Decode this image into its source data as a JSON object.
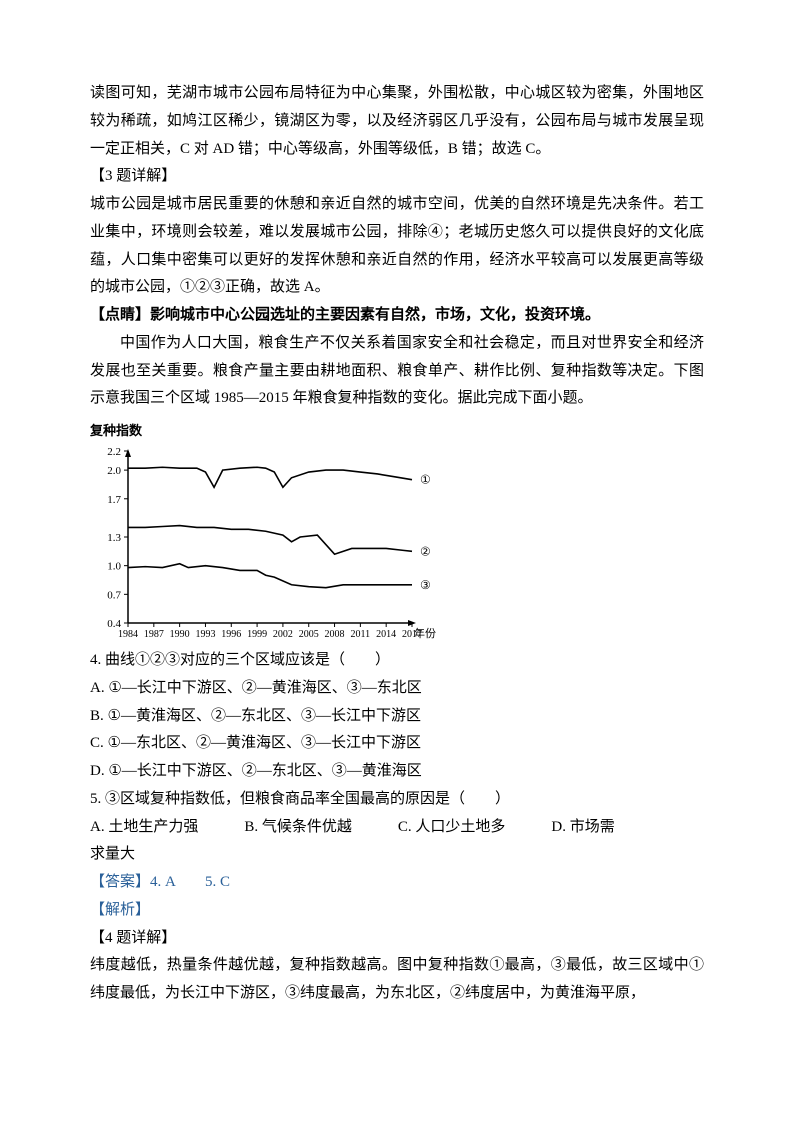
{
  "para1": "读图可知，芜湖市城市公园布局特征为中心集聚，外围松散，中心城区较为密集，外围地区较为稀疏，如鸠江区稀少，镜湖区为零，以及经济弱区几乎没有，公园布局与城市发展呈现一定正相关，C 对 AD 错；中心等级高，外围等级低，B 错；故选 C。",
  "q3_header": "【3 题详解】",
  "para2": "城市公园是城市居民重要的休憩和亲近自然的城市空间，优美的自然环境是先决条件。若工业集中，环境则会较差，难以发展城市公园，排除④；老城历史悠久可以提供良好的文化底蕴，人口集中密集可以更好的发挥休憩和亲近自然的作用，经济水平较高可以发展更高等级的城市公园，①②③正确，故选 A。",
  "dianjing": "【点睛】影响城市中心公园选址的主要因素有自然，市场，文化，投资环境。",
  "context1": "中国作为人口大国，粮食生产不仅关系着国家安全和社会稳定，而且对世界安全和经济发展也至关重要。粮食产量主要由耕地面积、粮食单产、耕作比例、复种指数等决定。下图示意我国三个区域 1985—2015 年粮食复种指数的变化。据此完成下面小题。",
  "chart": {
    "type": "line",
    "ylabel": "复种指数",
    "xlabel_suffix": "年份",
    "ylim": [
      0.4,
      2.2
    ],
    "yticks": [
      0.4,
      0.7,
      1.0,
      1.3,
      1.7,
      2.0,
      2.2
    ],
    "xlim": [
      1984,
      2017
    ],
    "xticks": [
      1984,
      1987,
      1990,
      1993,
      1996,
      1999,
      2002,
      2005,
      2008,
      2011,
      2014,
      2017
    ],
    "line_color": "#000000",
    "axis_color": "#000000",
    "background_color": "#ffffff",
    "series_label_font": 12,
    "axis_font": 11,
    "series": [
      {
        "label": "①",
        "points": [
          [
            1984,
            2.02
          ],
          [
            1986,
            2.02
          ],
          [
            1988,
            2.03
          ],
          [
            1990,
            2.02
          ],
          [
            1992,
            2.02
          ],
          [
            1993,
            1.98
          ],
          [
            1994,
            1.82
          ],
          [
            1995,
            2.0
          ],
          [
            1997,
            2.02
          ],
          [
            1999,
            2.03
          ],
          [
            2000,
            2.02
          ],
          [
            2001,
            1.98
          ],
          [
            2002,
            1.82
          ],
          [
            2003,
            1.92
          ],
          [
            2005,
            1.98
          ],
          [
            2007,
            2.0
          ],
          [
            2009,
            2.0
          ],
          [
            2011,
            1.98
          ],
          [
            2013,
            1.96
          ],
          [
            2015,
            1.93
          ],
          [
            2017,
            1.9
          ]
        ]
      },
      {
        "label": "②",
        "points": [
          [
            1984,
            1.4
          ],
          [
            1986,
            1.4
          ],
          [
            1988,
            1.41
          ],
          [
            1990,
            1.42
          ],
          [
            1992,
            1.4
          ],
          [
            1994,
            1.4
          ],
          [
            1996,
            1.38
          ],
          [
            1998,
            1.38
          ],
          [
            2000,
            1.36
          ],
          [
            2002,
            1.32
          ],
          [
            2003,
            1.25
          ],
          [
            2004,
            1.3
          ],
          [
            2006,
            1.32
          ],
          [
            2008,
            1.12
          ],
          [
            2010,
            1.18
          ],
          [
            2012,
            1.18
          ],
          [
            2014,
            1.18
          ],
          [
            2016,
            1.16
          ],
          [
            2017,
            1.15
          ]
        ]
      },
      {
        "label": "③",
        "points": [
          [
            1984,
            0.98
          ],
          [
            1986,
            0.99
          ],
          [
            1988,
            0.98
          ],
          [
            1990,
            1.02
          ],
          [
            1991,
            0.98
          ],
          [
            1993,
            1.0
          ],
          [
            1995,
            0.98
          ],
          [
            1997,
            0.95
          ],
          [
            1999,
            0.95
          ],
          [
            2000,
            0.9
          ],
          [
            2001,
            0.88
          ],
          [
            2003,
            0.8
          ],
          [
            2005,
            0.78
          ],
          [
            2007,
            0.77
          ],
          [
            2009,
            0.8
          ],
          [
            2011,
            0.8
          ],
          [
            2013,
            0.8
          ],
          [
            2015,
            0.8
          ],
          [
            2017,
            0.8
          ]
        ]
      }
    ]
  },
  "q4_stem": "4. 曲线①②③对应的三个区域应该是（　　）",
  "q4_opts": {
    "A": "A. ①—长江中下游区、②—黄淮海区、③—东北区",
    "B": "B. ①—黄淮海区、②—东北区、③—长江中下游区",
    "C": "C. ①—东北区、②—黄淮海区、③—长江中下游区",
    "D": "D. ①—长江中下游区、②—东北区、③—黄淮海区"
  },
  "q5_stem": "5. ③区域复种指数低，但粮食商品率全国最高的原因是（　　）",
  "q5_opt_A": "A. 土地生产力强",
  "q5_opt_B": "B. 气候条件优越",
  "q5_opt_C": "C. 人口少土地多",
  "q5_opt_D": "D. 市场需",
  "q5_opt_D_line2": "求量大",
  "ans_label": "【答案】4. A　　5. C",
  "jiexi_label": "【解析】",
  "q4_header": "【4 题详解】",
  "para3": "纬度越低，热量条件越优越，复种指数越高。图中复种指数①最高，③最低，故三区域中①纬度最低，为长江中下游区，③纬度最高，为东北区，②纬度居中，为黄淮海平原，"
}
